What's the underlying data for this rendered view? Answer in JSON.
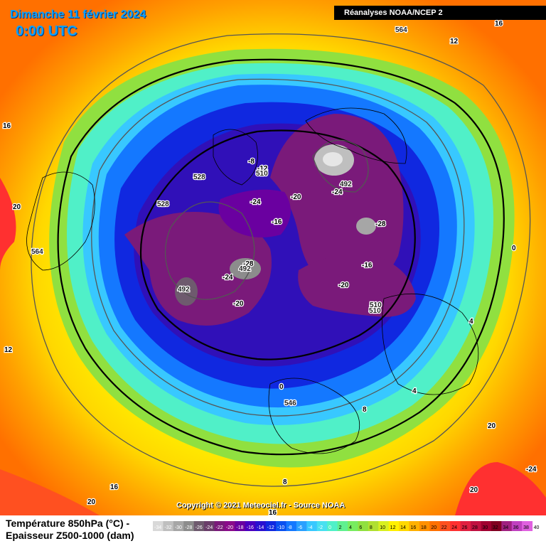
{
  "header": {
    "date": "Dimanche 11 février 2024",
    "time": "0:00 UTC",
    "source": "Réanalyses NOAA/NCEP 2"
  },
  "footer": {
    "copyright": "Copyright © 2021 Meteociel.fr - Source NOAA",
    "legend_title_1": "Température 850hPa (°C) -",
    "legend_title_2": "Epaisseur Z500-1000 (dam)"
  },
  "legend": {
    "ticks": [
      "-34",
      "-32",
      "-30",
      "-28",
      "-26",
      "-24",
      "-22",
      "-20",
      "-18",
      "-16",
      "-14",
      "-12",
      "-10",
      "-8",
      "-6",
      "-4",
      "-2",
      "0",
      "2",
      "4",
      "6",
      "8",
      "10",
      "12",
      "14",
      "16",
      "18",
      "20",
      "22",
      "24",
      "26",
      "28",
      "30",
      "32",
      "34",
      "36",
      "38",
      "40"
    ],
    "colors": [
      "#d9d9d9",
      "#bfbfbf",
      "#a6a6a6",
      "#8c8c8c",
      "#6e5a6e",
      "#6a3d6a",
      "#7a1a7a",
      "#8a0b8a",
      "#6a00a0",
      "#4a00c0",
      "#2a10d0",
      "#1028e0",
      "#0a50f0",
      "#1478ff",
      "#2aa0ff",
      "#38c8ff",
      "#48e0f0",
      "#50f0c8",
      "#60f090",
      "#78ec60",
      "#90e040",
      "#b0e030",
      "#d8f020",
      "#fff000",
      "#ffd800",
      "#ffb000",
      "#ff9000",
      "#ff7000",
      "#ff5020",
      "#ff3030",
      "#e02040",
      "#c01040",
      "#a00030",
      "#800020",
      "#a02080",
      "#c040c0",
      "#e060e0"
    ]
  },
  "map_labels": {
    "temperature": [
      "0",
      "-12",
      "-8",
      "-24",
      "-20",
      "-16",
      "-24",
      "-28",
      "-24",
      "-28",
      "-20",
      "-16",
      "-20",
      "0",
      "4",
      "4",
      "8",
      "8",
      "12",
      "12",
      "16",
      "16",
      "16",
      "16",
      "20",
      "20",
      "20",
      "20",
      "-24"
    ],
    "thickness": [
      "564",
      "528",
      "528",
      "510",
      "492",
      "492",
      "492",
      "510",
      "546",
      "564",
      "510"
    ]
  }
}
